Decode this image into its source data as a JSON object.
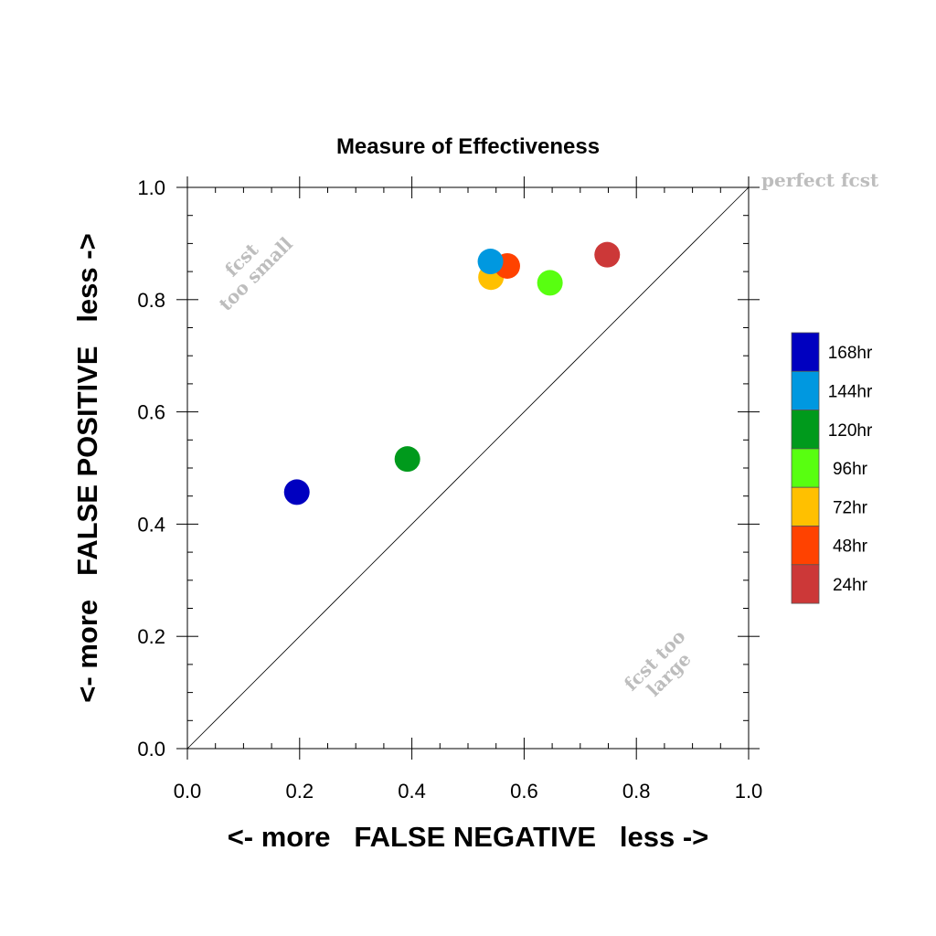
{
  "chart_data": {
    "type": "scatter",
    "title": "Measure of Effectiveness",
    "xlabel": "<- more   FALSE NEGATIVE   less ->",
    "ylabel": "<- more   FALSE POSITIVE   less ->",
    "xlim": [
      0,
      1
    ],
    "ylim": [
      0,
      1
    ],
    "xticks": [
      "0.0",
      "0.2",
      "0.4",
      "0.6",
      "0.8",
      "1.0"
    ],
    "yticks": [
      "0.0",
      "0.2",
      "0.4",
      "0.6",
      "0.8",
      "1.0"
    ],
    "grid": false,
    "legend_position": "right",
    "diagonal_line": true,
    "annotations": {
      "perfect": "perfect fcst",
      "small_1": "fcst",
      "small_2": "too small",
      "large_1": "fcst too",
      "large_2": "large"
    },
    "series": [
      {
        "name": "168hr",
        "color": "#0000c0",
        "x": 0.195,
        "y": 0.457
      },
      {
        "name": "144hr",
        "color": "#0098e0",
        "x": 0.54,
        "y": 0.868
      },
      {
        "name": "120hr",
        "color": "#009a1c",
        "x": 0.392,
        "y": 0.516
      },
      {
        "name": "96hr",
        "color": "#58ff10",
        "x": 0.646,
        "y": 0.83
      },
      {
        "name": "72hr",
        "color": "#ffc000",
        "x": 0.541,
        "y": 0.84
      },
      {
        "name": "48hr",
        "color": "#ff4200",
        "x": 0.57,
        "y": 0.86
      },
      {
        "name": "24hr",
        "color": "#cc3838",
        "x": 0.748,
        "y": 0.88
      }
    ],
    "draw_order": [
      "168hr",
      "120hr",
      "96hr",
      "24hr",
      "72hr",
      "48hr",
      "144hr"
    ]
  }
}
